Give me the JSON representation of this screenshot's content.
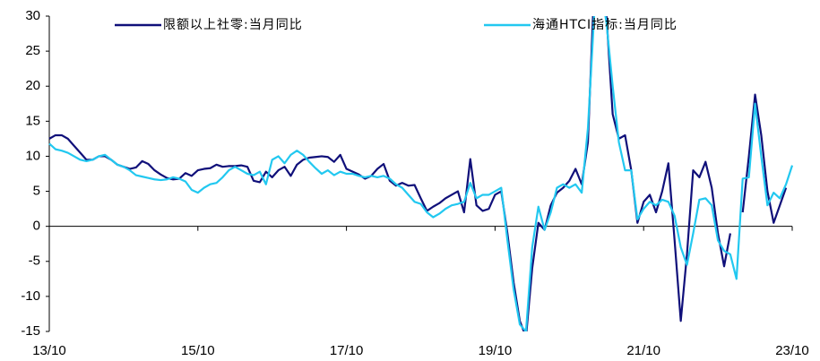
{
  "chart_data": {
    "type": "line",
    "categories": [
      "13/10",
      null,
      null,
      null,
      null,
      null,
      null,
      null,
      null,
      null,
      null,
      null,
      null,
      null,
      null,
      null,
      null,
      null,
      null,
      null,
      null,
      null,
      null,
      null,
      "15/10",
      null,
      null,
      null,
      null,
      null,
      null,
      null,
      null,
      null,
      null,
      null,
      null,
      null,
      null,
      null,
      null,
      null,
      null,
      null,
      null,
      null,
      null,
      null,
      "17/10",
      null,
      null,
      null,
      null,
      null,
      null,
      null,
      null,
      null,
      null,
      null,
      null,
      null,
      null,
      null,
      null,
      null,
      null,
      null,
      null,
      null,
      null,
      null,
      "19/10",
      null,
      null,
      null,
      null,
      null,
      null,
      null,
      null,
      null,
      null,
      null,
      null,
      null,
      null,
      null,
      null,
      null,
      null,
      null,
      null,
      null,
      null,
      null,
      "21/10",
      null,
      null,
      null,
      null,
      null,
      null,
      null,
      null,
      null,
      null,
      null,
      null,
      null,
      null,
      null,
      null,
      null,
      null,
      null,
      null,
      null,
      null,
      null,
      "23/10"
    ],
    "series": [
      {
        "name": "限额以上社零:当月同比",
        "color": "#10107a",
        "values": [
          12.5,
          13,
          13,
          12.5,
          11.5,
          10.5,
          9.5,
          9.5,
          10,
          10,
          9.5,
          8.8,
          8.5,
          8.2,
          8.4,
          9.3,
          8.9,
          8.0,
          7.4,
          6.9,
          6.7,
          6.8,
          7.6,
          7.2,
          8.0,
          8.2,
          8.3,
          8.8,
          8.5,
          8.6,
          8.6,
          8.7,
          8.5,
          6.5,
          6.3,
          7.8,
          7.0,
          8.0,
          8.5,
          7.2,
          8.8,
          9.5,
          9.8,
          9.9,
          10,
          9.9,
          9.2,
          10.2,
          8.2,
          7.8,
          7.4,
          6.8,
          7.2,
          8.2,
          8.9,
          6.5,
          5.8,
          6.2,
          5.8,
          5.9,
          4.0,
          2.2,
          2.8,
          3.3,
          4.0,
          4.5,
          5.0,
          2.0,
          9.6,
          3.0,
          2.2,
          2.5,
          4.5,
          5.0,
          -1.0,
          -8.0,
          -13.5,
          -15.8,
          -6.0,
          0.5,
          -0.5,
          3.0,
          4.8,
          5.5,
          6.5,
          8.2,
          6.0,
          12,
          34,
          31,
          30,
          16,
          12.5,
          13,
          8,
          0.5,
          3.5,
          4.5,
          2.0,
          5.0,
          9.0,
          -2,
          -13.5,
          -4,
          8,
          7,
          9.2,
          5.5,
          -1,
          -5.7,
          -1.0,
          null,
          2.0,
          10,
          18.8,
          13,
          5,
          0.5,
          3,
          5.5,
          null
        ]
      },
      {
        "name": "海通HTCI指标:当月同比",
        "color": "#22c8f0",
        "values": [
          11.8,
          11,
          10.8,
          10.5,
          10,
          9.5,
          9.3,
          9.5,
          10,
          10.2,
          9.5,
          8.8,
          8.5,
          8.0,
          7.3,
          7.1,
          6.9,
          6.7,
          6.6,
          6.7,
          7.0,
          6.8,
          6.4,
          5.2,
          4.8,
          5.5,
          6.0,
          6.2,
          7.0,
          8.0,
          8.5,
          8.0,
          7.5,
          7.3,
          7.8,
          6.0,
          9.5,
          10,
          9.0,
          10.2,
          10.8,
          10.2,
          9.2,
          8.3,
          7.5,
          8.0,
          7.3,
          7.8,
          7.5,
          7.5,
          7.2,
          7.0,
          7.2,
          7.0,
          7.2,
          6.8,
          6.0,
          5.5,
          4.5,
          3.5,
          3.2,
          2.0,
          1.3,
          1.8,
          2.5,
          3.0,
          3.2,
          3.5,
          6.2,
          4.0,
          4.5,
          4.5,
          5.0,
          5.5,
          -2,
          -9,
          -14,
          -15,
          -3,
          2.8,
          -0.5,
          2.0,
          5.5,
          6.0,
          5.5,
          6.0,
          4.8,
          14,
          30,
          35,
          29,
          20,
          12,
          8,
          8,
          1,
          2.5,
          3.5,
          3.0,
          3.8,
          3.5,
          1.5,
          -3,
          -5.5,
          -1,
          3.8,
          4.0,
          3.0,
          -2,
          -3.5,
          -4,
          -7.5,
          6.8,
          7,
          17.5,
          10,
          3,
          4.8,
          4,
          6,
          8.7
        ]
      }
    ],
    "ylim": [
      -15,
      30
    ],
    "yticks": [
      -15,
      -10,
      -5,
      0,
      5,
      10,
      15,
      20,
      25,
      30
    ],
    "legend": "top"
  }
}
